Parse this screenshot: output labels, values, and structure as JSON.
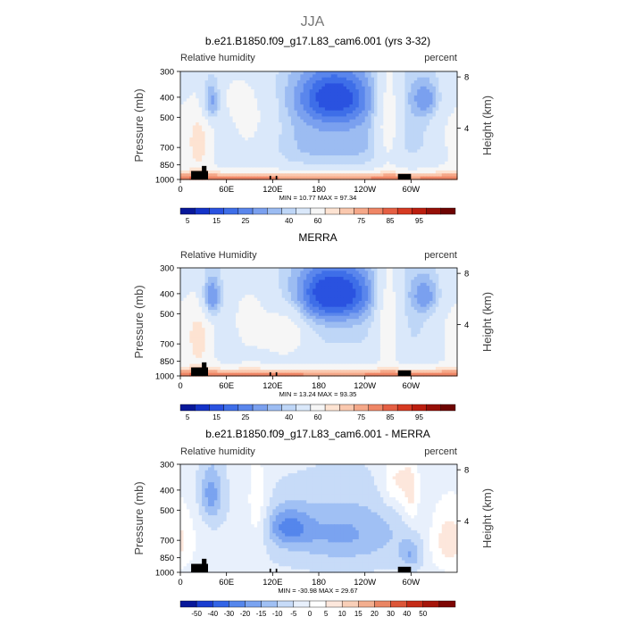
{
  "figure": {
    "title": "JJA"
  },
  "colors": {
    "abs_levels": [
      "#08189a",
      "#1433c8",
      "#2a52e0",
      "#3e6ee8",
      "#5a86ec",
      "#7aa0ef",
      "#9cbcf2",
      "#bed6f7",
      "#dae8fa",
      "#f6f6f6",
      "#fde3d2",
      "#fac8ae",
      "#f5a889",
      "#ef8666",
      "#e55f43",
      "#d63a22",
      "#bb1e0f",
      "#960f07",
      "#6e0402"
    ],
    "diff_levels": [
      "#08189a",
      "#1a3dd0",
      "#3264e6",
      "#5586ec",
      "#7aa3f0",
      "#a0c0f4",
      "#c7dbf8",
      "#e8f0fc",
      "#ffffff",
      "#fde7dc",
      "#f9cfb8",
      "#f3ae8f",
      "#ea8563",
      "#dc5638",
      "#c52c18",
      "#a5150a",
      "#7e0604"
    ],
    "land": "#000000"
  },
  "chart_data": [
    {
      "type": "heatmap",
      "title": "b.e21.B1850.f09_g17.L83_cam6.001 (yrs 3-32)",
      "left_label": "Relative humidity",
      "right_label": "percent",
      "ylabel": "Pressure (mb)",
      "y2label": "Height (km)",
      "y_ticks": [
        "300",
        "400",
        "500",
        "700",
        "850",
        "1000"
      ],
      "y_tick_values": [
        300,
        400,
        500,
        700,
        850,
        1000
      ],
      "y2_ticks": [
        "8",
        "4"
      ],
      "y2_tick_values": [
        8,
        4
      ],
      "x_ticks": [
        "0",
        "60E",
        "120E",
        "180",
        "120W",
        "60W"
      ],
      "x_tick_values": [
        0,
        60,
        120,
        180,
        240,
        300
      ],
      "xlim": [
        0,
        360
      ],
      "ylim": [
        1000,
        300
      ],
      "stats": "MIN =   10.77   MAX =   97.34",
      "min": 10.77,
      "max": 97.34,
      "colorbar_labels": [
        "5",
        "15",
        "25",
        "40",
        "60",
        "75",
        "85",
        "95"
      ],
      "colorbar_levels": [
        5,
        10,
        15,
        20,
        25,
        30,
        35,
        40,
        50,
        60,
        65,
        70,
        75,
        80,
        85,
        90,
        95
      ]
    },
    {
      "type": "heatmap",
      "title": "MERRA",
      "left_label": "Relative Humidity",
      "right_label": "percent",
      "ylabel": "Pressure (mb)",
      "y2label": "Height (km)",
      "y_ticks": [
        "300",
        "400",
        "500",
        "700",
        "850",
        "1000"
      ],
      "y_tick_values": [
        300,
        400,
        500,
        700,
        850,
        1000
      ],
      "y2_ticks": [
        "8",
        "4"
      ],
      "y2_tick_values": [
        8,
        4
      ],
      "x_ticks": [
        "0",
        "60E",
        "120E",
        "180",
        "120W",
        "60W"
      ],
      "x_tick_values": [
        0,
        60,
        120,
        180,
        240,
        300
      ],
      "xlim": [
        0,
        360
      ],
      "ylim": [
        1000,
        300
      ],
      "stats": "MIN =   13.24   MAX =   93.35",
      "min": 13.24,
      "max": 93.35,
      "colorbar_labels": [
        "5",
        "15",
        "25",
        "40",
        "60",
        "75",
        "85",
        "95"
      ],
      "colorbar_levels": [
        5,
        10,
        15,
        20,
        25,
        30,
        35,
        40,
        50,
        60,
        65,
        70,
        75,
        80,
        85,
        90,
        95
      ]
    },
    {
      "type": "heatmap",
      "title": "b.e21.B1850.f09_g17.L83_cam6.001 - MERRA",
      "left_label": "Relative humidity",
      "right_label": "percent",
      "ylabel": "Pressure (mb)",
      "y2label": "Height (km)",
      "y_ticks": [
        "300",
        "400",
        "500",
        "700",
        "850",
        "1000"
      ],
      "y_tick_values": [
        300,
        400,
        500,
        700,
        850,
        1000
      ],
      "y2_ticks": [
        "8",
        "4"
      ],
      "y2_tick_values": [
        8,
        4
      ],
      "x_ticks": [
        "0",
        "60E",
        "120E",
        "180",
        "120W",
        "60W"
      ],
      "x_tick_values": [
        0,
        60,
        120,
        180,
        240,
        300
      ],
      "xlim": [
        0,
        360
      ],
      "ylim": [
        1000,
        300
      ],
      "stats": "MIN =  -30.98   MAX =   29.67",
      "min": -30.98,
      "max": 29.67,
      "colorbar_labels": [
        "-50",
        "-40",
        "-30",
        "-20",
        "-15",
        "-10",
        "-5",
        "0",
        "5",
        "10",
        "15",
        "20",
        "30",
        "40",
        "50"
      ],
      "colorbar_levels": [
        -50,
        -40,
        -30,
        -20,
        -15,
        -10,
        -5,
        0,
        5,
        10,
        15,
        20,
        30,
        40,
        50
      ]
    }
  ]
}
